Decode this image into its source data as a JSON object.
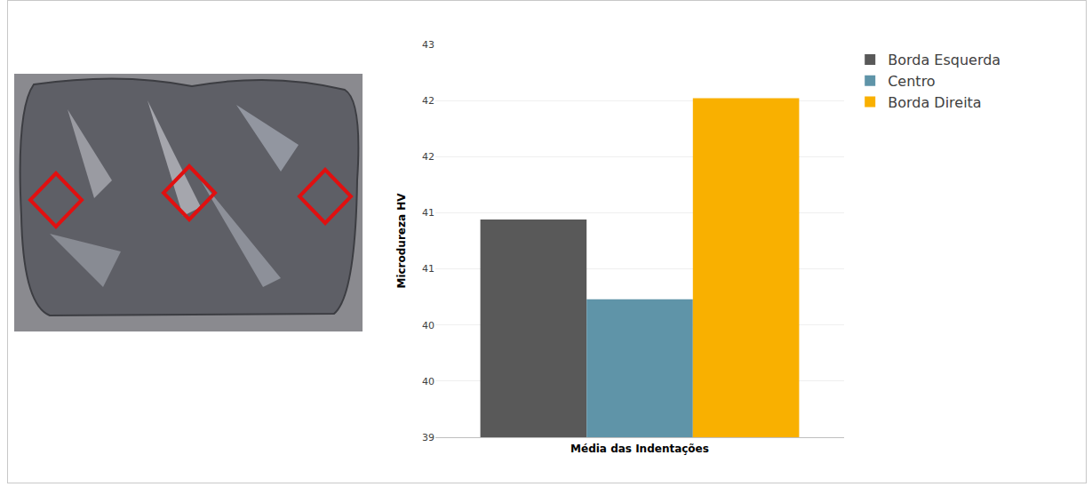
{
  "chart_data": {
    "type": "bar",
    "x_label": "Média das Indentações",
    "y_label": "Microdureza HV",
    "categories": [
      null
    ],
    "series": [
      {
        "name": "Borda Esquerda",
        "color": "#595959",
        "values": [
          40.94
        ]
      },
      {
        "name": "Centro",
        "color": "#5f94a8",
        "values": [
          40.23
        ]
      },
      {
        "name": "Borda Direita",
        "color": "#f9b000",
        "values": [
          42.02
        ]
      }
    ],
    "ylim": [
      39,
      42.5
    ],
    "yticks": [
      39,
      {
        "value": 39.5,
        "label": "40"
      },
      40,
      {
        "value": 40.5,
        "label": "41"
      },
      41,
      {
        "value": 41.5,
        "label": "42"
      },
      42,
      {
        "value": 42.5,
        "label": "43"
      }
    ],
    "grid": true,
    "legend": "right"
  }
}
